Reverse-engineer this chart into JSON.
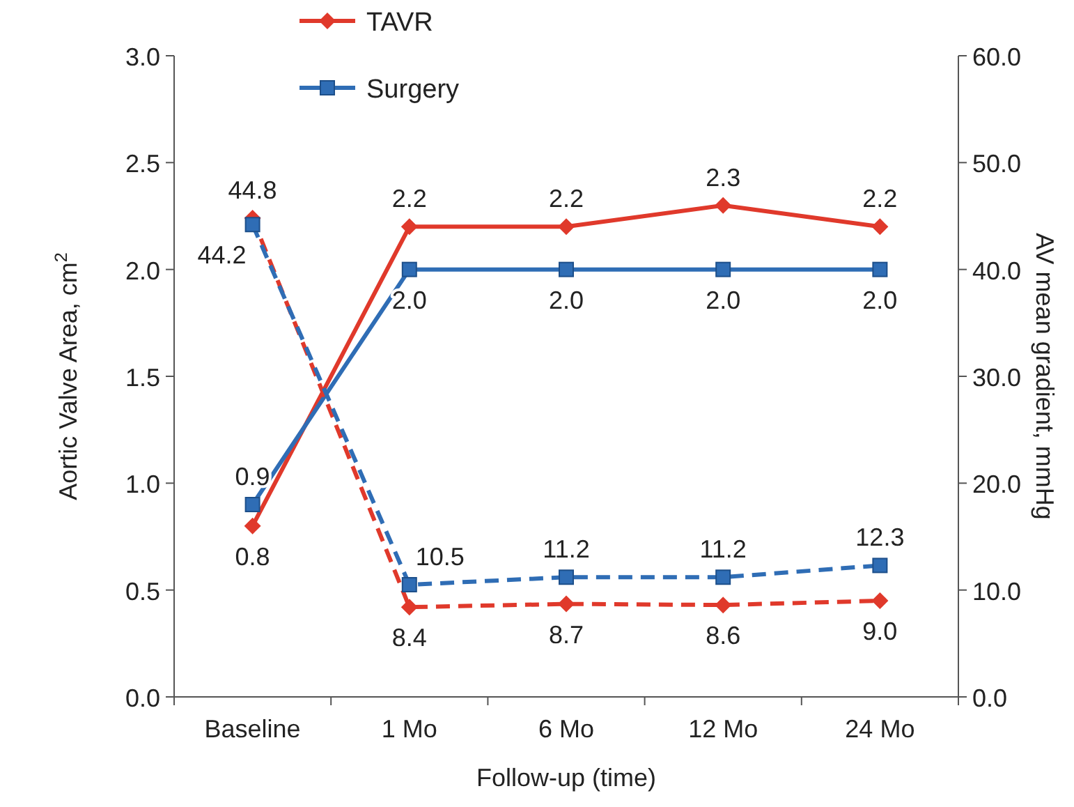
{
  "chart_data": {
    "type": "line",
    "xlabel": "Follow-up (time)",
    "ylabel": "Aortic Valve Area, cm$^{2}$",
    "y2label": "AV mean gradient, mmHg",
    "categories": [
      "Baseline",
      "1 Mo",
      "6 Mo",
      "12 Mo",
      "24 Mo"
    ],
    "ylim": [
      0,
      3
    ],
    "yticks": [
      {
        "value": 0,
        "label": "0.0"
      },
      {
        "value": 0.5,
        "label": "0.5"
      },
      {
        "value": 1,
        "label": "1.0"
      },
      {
        "value": 1.5,
        "label": "1.5"
      },
      {
        "value": 2,
        "label": "2.0"
      },
      {
        "value": 2.5,
        "label": "2.5"
      },
      {
        "value": 3,
        "label": "3.0"
      }
    ],
    "y2lim": [
      0,
      60
    ],
    "y2ticks": [
      {
        "value": 0,
        "label": "0.0"
      },
      {
        "value": 10,
        "label": "10.0"
      },
      {
        "value": 20,
        "label": "20.0"
      },
      {
        "value": 30,
        "label": "30.0"
      },
      {
        "value": 40,
        "label": "40.0"
      },
      {
        "value": 50,
        "label": "50.0"
      },
      {
        "value": 60,
        "label": "60.0"
      }
    ],
    "grid": false,
    "legend": "top",
    "series": [
      {
        "name": "TAVR",
        "color": "#e0392b",
        "marker": "diamond",
        "line_style": "solid",
        "values": [
          0.8,
          2.2,
          2.2,
          2.3,
          2.2
        ],
        "value_labels": [
          "0.8",
          "2.2",
          "2.2",
          "2.3",
          "2.2"
        ]
      },
      {
        "name": "Surgery",
        "color": "#2f6db5",
        "marker": "square",
        "line_style": "solid",
        "values": [
          0.9,
          2.0,
          2.0,
          2.0,
          2.0
        ],
        "value_labels": [
          "0.9",
          "2.0",
          "2.0",
          "2.0",
          "2.0"
        ]
      },
      {
        "color": "#e0392b",
        "marker": "diamond",
        "line_style": "dashed",
        "axis": "y2",
        "values": [
          44.8,
          8.4,
          8.7,
          8.6,
          9.0
        ],
        "value_labels": [
          "44.8",
          "8.4",
          "8.7",
          "8.6",
          "9.0"
        ]
      },
      {
        "color": "#2f6db5",
        "marker": "square",
        "line_style": "dashed",
        "axis": "y2",
        "values": [
          44.2,
          10.5,
          11.2,
          11.2,
          12.3
        ],
        "value_labels": [
          "44.2",
          "10.5",
          "11.2",
          "11.2",
          "12.3"
        ]
      }
    ]
  }
}
